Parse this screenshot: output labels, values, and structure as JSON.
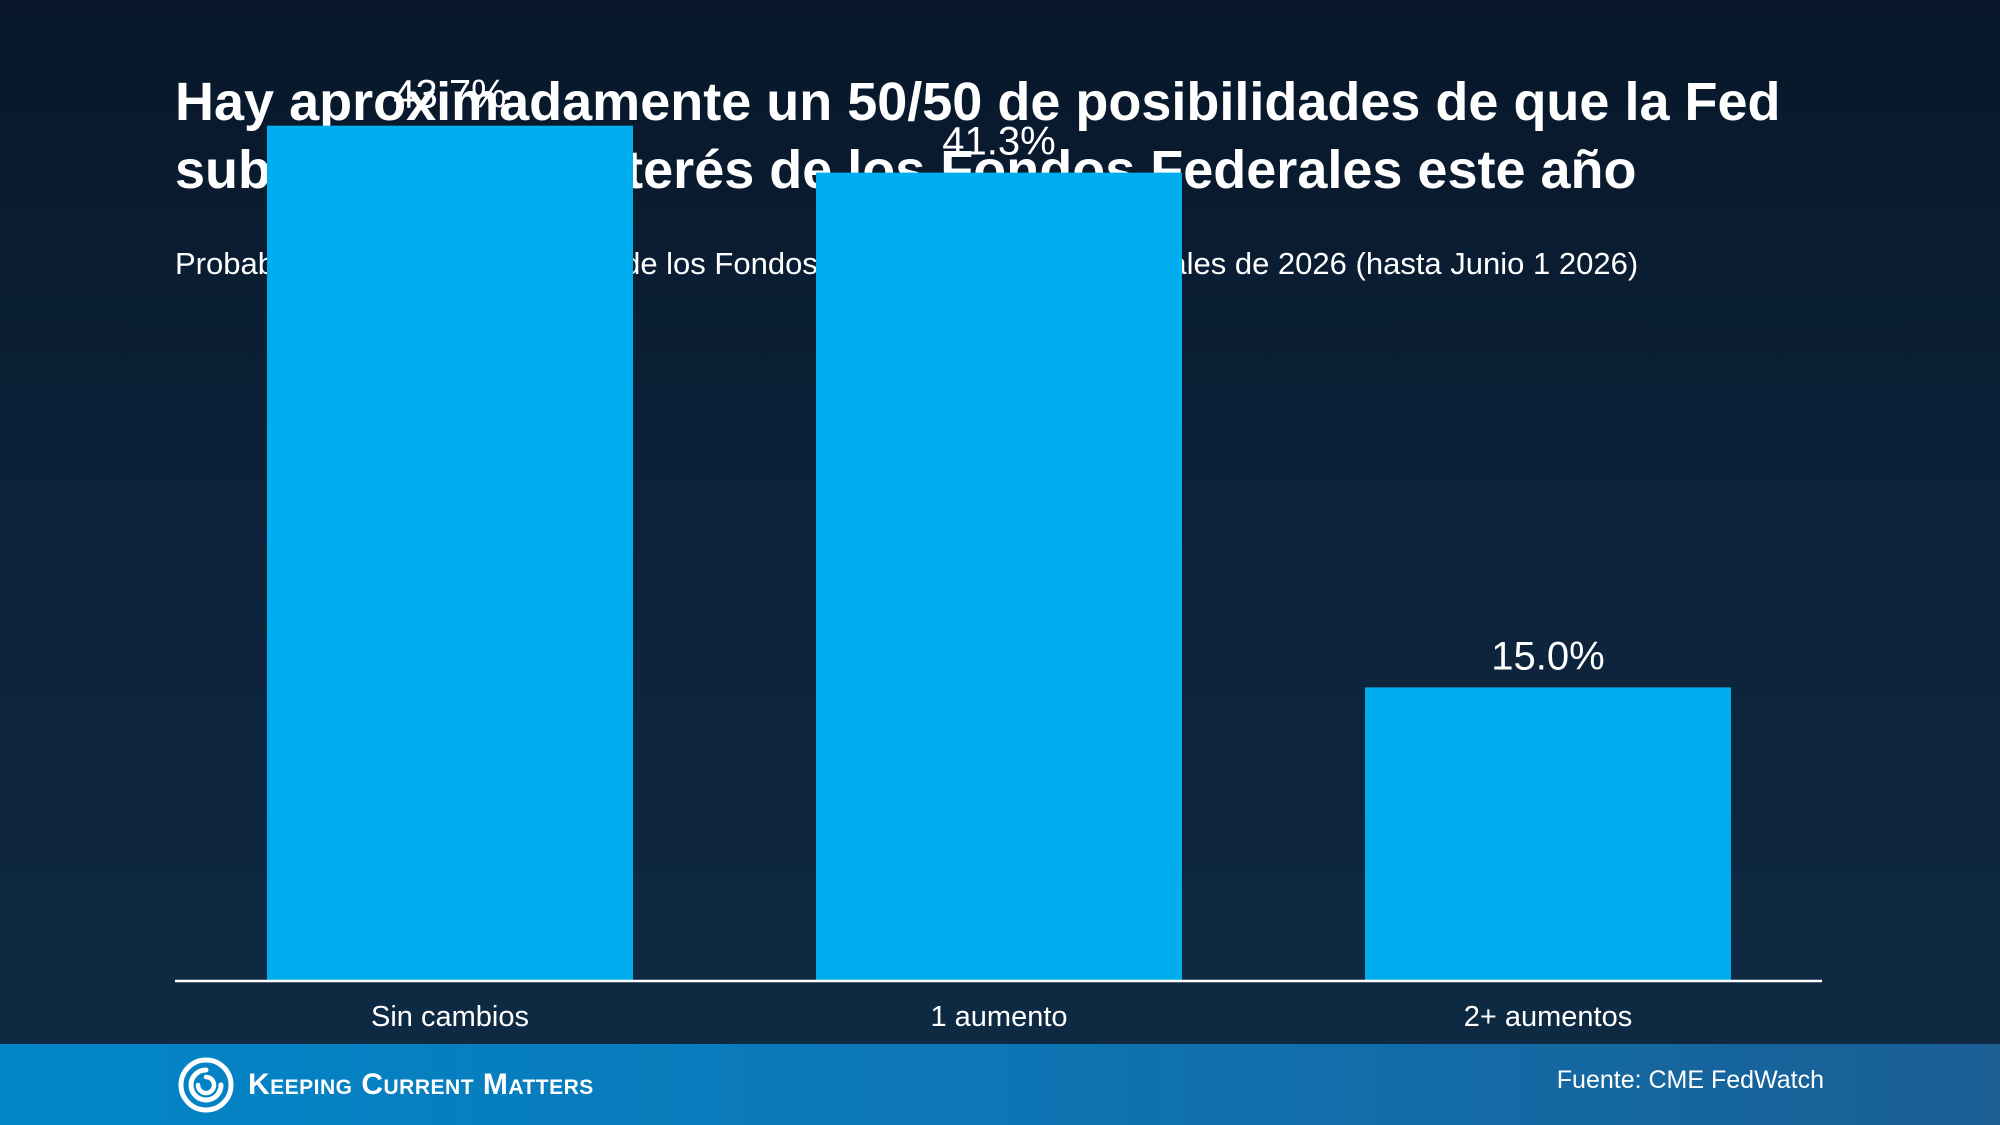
{
  "header": {
    "title": "Hay aproximadamente un 50/50 de posibilidades de que la Fed suba la tasa de interés de los Fondos Federales este año",
    "subtitle": "Probabilidades de que las tasas de los Fondos Federales suban para finales de 2026 (hasta Junio 1 2026)"
  },
  "chart_data": {
    "type": "bar",
    "categories": [
      "Sin cambios",
      "1 aumento",
      "2+ aumentos"
    ],
    "values": [
      43.7,
      41.3,
      15.0
    ],
    "data_labels": [
      "43.7%",
      "41.3%",
      "15.0%"
    ],
    "ylim": [
      0,
      50
    ],
    "grid": false,
    "legend": "none",
    "bar_color": "#00aeef"
  },
  "footer": {
    "logo_text": "Keeping Current Matters",
    "source": "Fuente: CME FedWatch"
  },
  "colors": {
    "accent": "#00aeef",
    "background": "#0c2239",
    "footer": "#0c78b8"
  }
}
